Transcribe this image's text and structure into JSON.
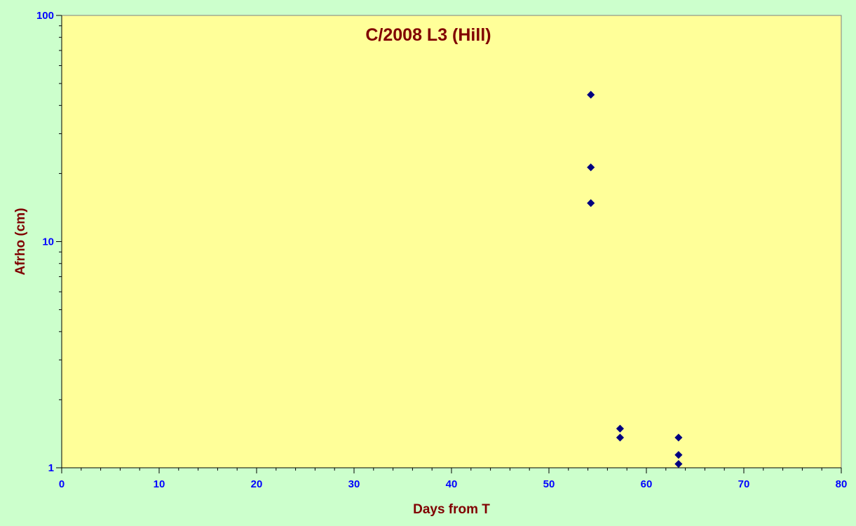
{
  "chart_data": {
    "type": "scatter",
    "title": "C/2008 L3 (Hill)",
    "xlabel": "Days from T",
    "ylabel": "Afrho (cm)",
    "xlim": [
      0,
      80
    ],
    "ylim": [
      1,
      100
    ],
    "yscale": "log",
    "x_ticks": [
      0,
      10,
      20,
      30,
      40,
      50,
      60,
      70,
      80
    ],
    "y_ticks": [
      1,
      10,
      100
    ],
    "grid": false,
    "legend": "none",
    "series": [
      {
        "points": [
          {
            "x": 54.3,
            "y": 44.6
          },
          {
            "x": 54.3,
            "y": 21.3
          },
          {
            "x": 54.3,
            "y": 14.8
          },
          {
            "x": 57.3,
            "y": 1.49
          },
          {
            "x": 57.3,
            "y": 1.36
          },
          {
            "x": 63.3,
            "y": 1.36
          },
          {
            "x": 63.3,
            "y": 1.14
          },
          {
            "x": 63.3,
            "y": 1.04
          }
        ]
      }
    ]
  },
  "colors": {
    "page_bg": "#ccffcc",
    "plot_bg": "#ffff99",
    "marker": "#000080",
    "text_blue": "#0000ff",
    "text_maroon": "#800000"
  }
}
